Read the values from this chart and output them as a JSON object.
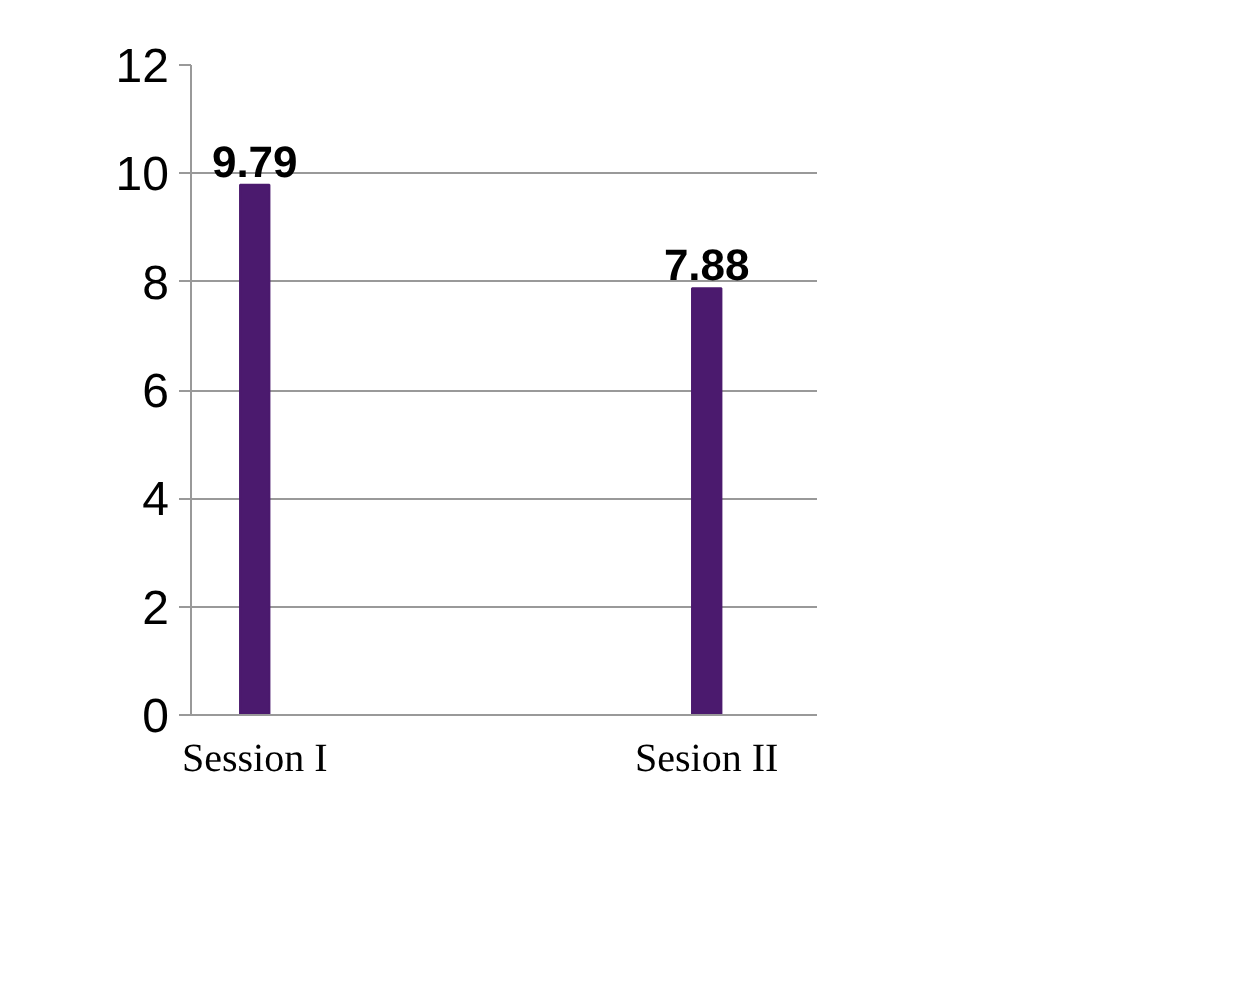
{
  "chart_data": {
    "type": "bar",
    "categories": [
      "Session I",
      "Sesion II"
    ],
    "values": [
      9.79,
      7.88
    ],
    "color": "#4b1a6e",
    "ylim": [
      0,
      12
    ],
    "yticks": [
      0,
      2,
      4,
      6,
      8,
      10,
      12
    ],
    "grid": "y",
    "data_labels": true
  }
}
